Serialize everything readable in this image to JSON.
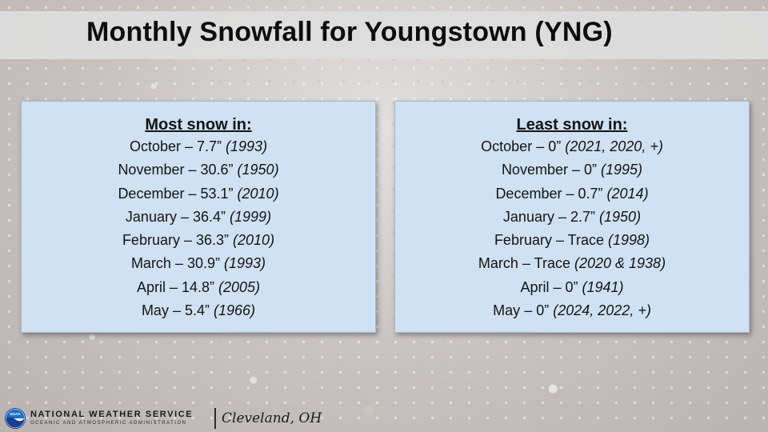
{
  "title": "Monthly Snowfall for Youngstown (YNG)",
  "most_snow": {
    "heading": "Most snow in:",
    "rows": [
      {
        "month": "October",
        "amount": "7.7”",
        "year": "(1993)"
      },
      {
        "month": "November",
        "amount": "30.6”",
        "year": "(1950)"
      },
      {
        "month": "December",
        "amount": "53.1”",
        "year": "(2010)"
      },
      {
        "month": "January",
        "amount": "36.4”",
        "year": "(1999)"
      },
      {
        "month": "February",
        "amount": "36.3”",
        "year": "(2010)"
      },
      {
        "month": "March",
        "amount": "30.9”",
        "year": "(1993)"
      },
      {
        "month": "April",
        "amount": "14.8”",
        "year": "(2005)"
      },
      {
        "month": "May",
        "amount": "5.4”",
        "year": "(1966)"
      }
    ]
  },
  "least_snow": {
    "heading": "Least snow in:",
    "rows": [
      {
        "month": "October",
        "amount": "0”",
        "year": "(2021, 2020, +)"
      },
      {
        "month": "November",
        "amount": "0”",
        "year": "(1995)"
      },
      {
        "month": "December",
        "amount": "0.7”",
        "year": "(2014)"
      },
      {
        "month": "January",
        "amount": "2.7”",
        "year": "(1950)"
      },
      {
        "month": "February",
        "amount": "Trace",
        "year": "(1998)"
      },
      {
        "month": "March",
        "amount": "Trace",
        "year": "(2020 & 1938)"
      },
      {
        "month": "April",
        "amount": "0”",
        "year": "(1941)"
      },
      {
        "month": "May",
        "amount": "0”",
        "year": "(2024, 2022, +)"
      }
    ]
  },
  "footer": {
    "agency": "NATIONAL WEATHER SERVICE",
    "agency_sub": "OCEANIC AND ATMOSPHERIC ADMINISTRATION",
    "office": "Cleveland, OH",
    "logo_icon": "noaa-logo-icon",
    "logo_text": "NOAA"
  },
  "colors": {
    "panel": "#cfe1f3",
    "title_band": "#dedede",
    "text": "#141414"
  }
}
